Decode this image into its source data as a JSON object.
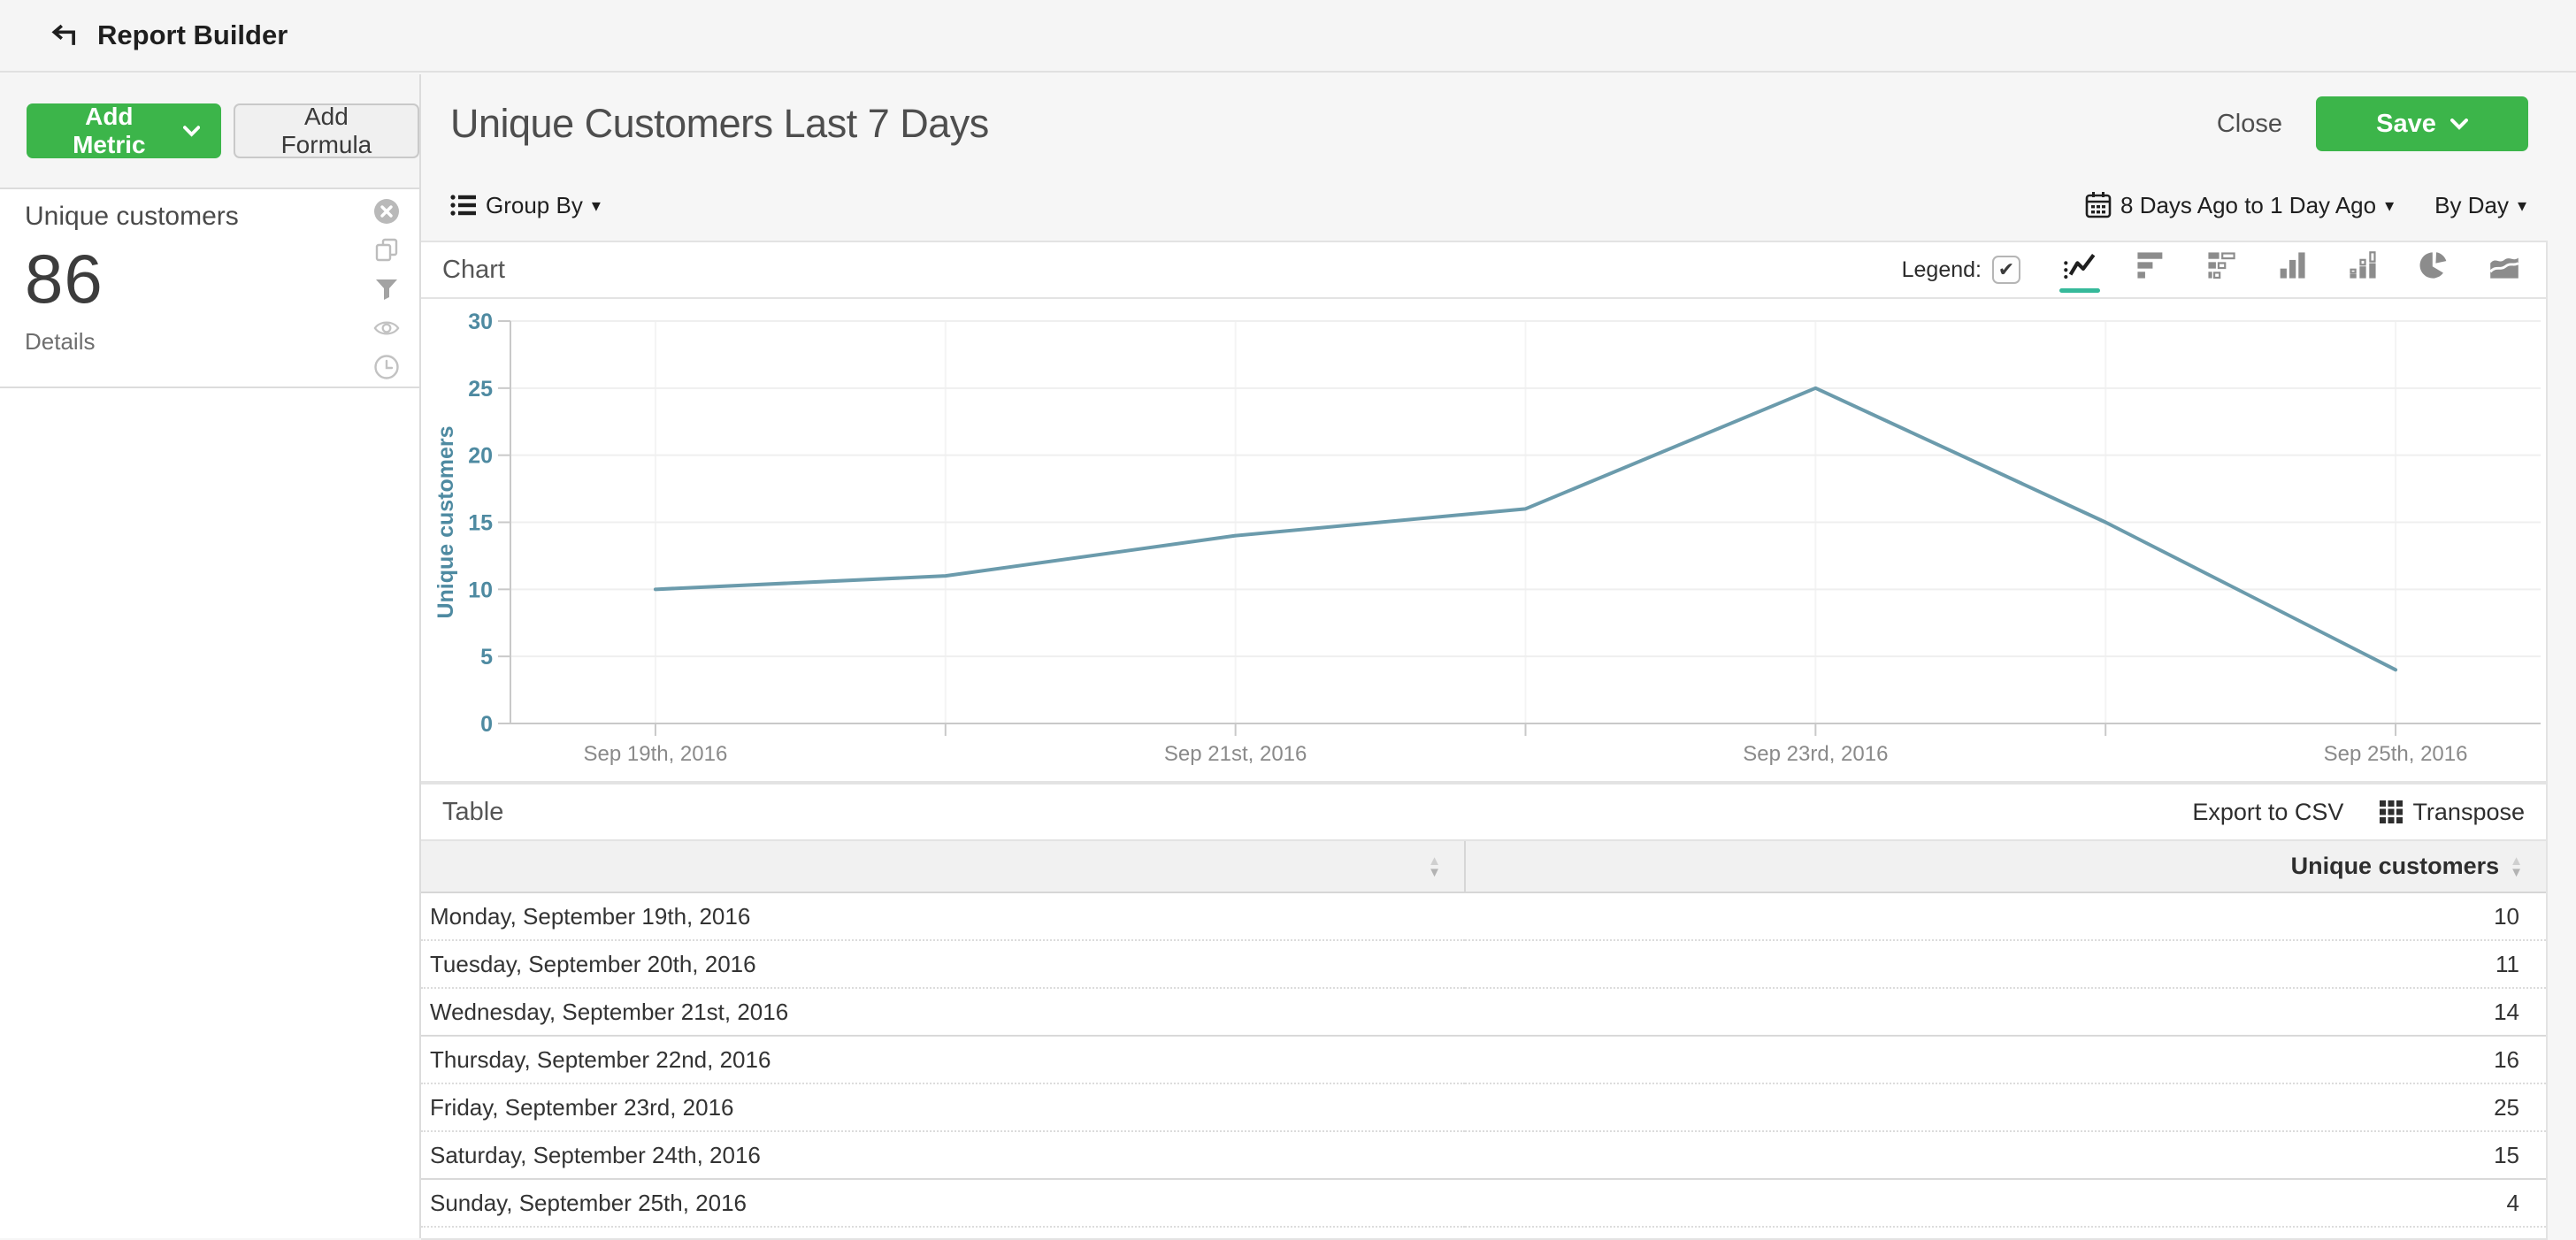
{
  "topbar": {
    "title": "Report Builder",
    "back_icon": "arrow-back"
  },
  "sidebar": {
    "add_metric_label": "Add Metric",
    "add_formula_label": "Add Formula",
    "metric_card": {
      "title": "Unique customers",
      "value": "86",
      "details_label": "Details",
      "action_icons": [
        "remove-icon",
        "duplicate-icon",
        "filter-icon",
        "visibility-icon",
        "history-icon"
      ]
    }
  },
  "header": {
    "title": "Unique Customers Last 7 Days",
    "close_label": "Close",
    "save_label": "Save"
  },
  "controls": {
    "group_by_label": "Group By",
    "date_range_label": "8 Days Ago to 1 Day Ago",
    "interval_label": "By Day"
  },
  "chart_panel": {
    "title": "Chart",
    "legend_label": "Legend:",
    "legend_checked": true,
    "type_icons": [
      "line-chart-icon",
      "horizontal-bar-icon",
      "stacked-horizontal-bar-icon",
      "vertical-bar-icon",
      "stacked-vertical-bar-icon",
      "pie-chart-icon",
      "area-chart-icon"
    ],
    "selected_type": "line-chart-icon"
  },
  "chart_data": {
    "type": "line",
    "x": [
      "Sep 19th, 2016",
      "Sep 20th, 2016",
      "Sep 21st, 2016",
      "Sep 22nd, 2016",
      "Sep 23rd, 2016",
      "Sep 24th, 2016",
      "Sep 25th, 2016"
    ],
    "x_labeled_every": 2,
    "series": [
      {
        "name": "Unique customers",
        "values": [
          10,
          11,
          14,
          16,
          25,
          15,
          4
        ]
      }
    ],
    "ylabel": "Unique customers",
    "ylim": [
      0,
      30
    ],
    "ytick_step": 5,
    "grid": true,
    "legend_position": "none",
    "line_color": "#6b9bac",
    "axis_text_color": "#4e8aa1",
    "x_text_color": "#8a8a8a"
  },
  "table_panel": {
    "title": "Table",
    "export_label": "Export to CSV",
    "transpose_label": "Transpose",
    "columns": [
      "",
      "Unique customers"
    ],
    "rows": [
      {
        "label": "Monday, September 19th, 2016",
        "value": "10"
      },
      {
        "label": "Tuesday, September 20th, 2016",
        "value": "11"
      },
      {
        "label": "Wednesday, September 21st, 2016",
        "value": "14"
      },
      {
        "label": "Thursday, September 22nd, 2016",
        "value": "16"
      },
      {
        "label": "Friday, September 23rd, 2016",
        "value": "25"
      },
      {
        "label": "Saturday, September 24th, 2016",
        "value": "15"
      },
      {
        "label": "Sunday, September 25th, 2016",
        "value": "4"
      }
    ]
  },
  "colors": {
    "accent_green": "#3cb54a",
    "selected_teal": "#36b99a",
    "line": "#6b9bac",
    "axis_text": "#4e8aa1"
  }
}
